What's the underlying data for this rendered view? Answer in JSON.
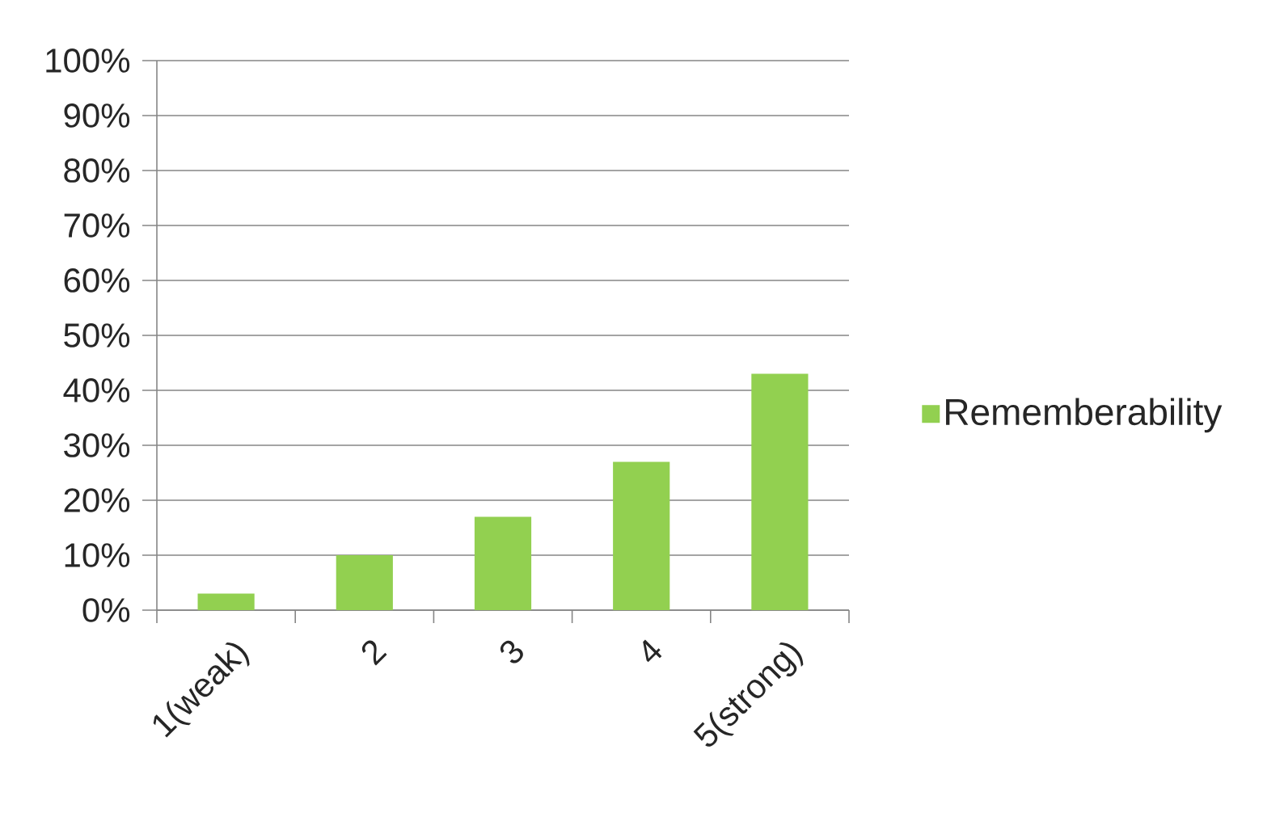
{
  "chart_data": {
    "type": "bar",
    "categories": [
      "1(weak)",
      "2",
      "3",
      "4",
      "5(strong)"
    ],
    "series": [
      {
        "name": "Rememberability",
        "color": "#92d050",
        "values": [
          3,
          10,
          17,
          27,
          43
        ]
      }
    ],
    "ylim": [
      0,
      100
    ],
    "yticks": [
      {
        "value": 0,
        "label": "0%"
      },
      {
        "value": 10,
        "label": "10%"
      },
      {
        "value": 20,
        "label": "20%"
      },
      {
        "value": 30,
        "label": "30%"
      },
      {
        "value": 40,
        "label": "40%"
      },
      {
        "value": 50,
        "label": "50%"
      },
      {
        "value": 60,
        "label": "60%"
      },
      {
        "value": 70,
        "label": "70%"
      },
      {
        "value": 80,
        "label": "80%"
      },
      {
        "value": 90,
        "label": "90%"
      },
      {
        "value": 100,
        "label": "100%"
      }
    ],
    "grid": "y",
    "legend": "right"
  }
}
